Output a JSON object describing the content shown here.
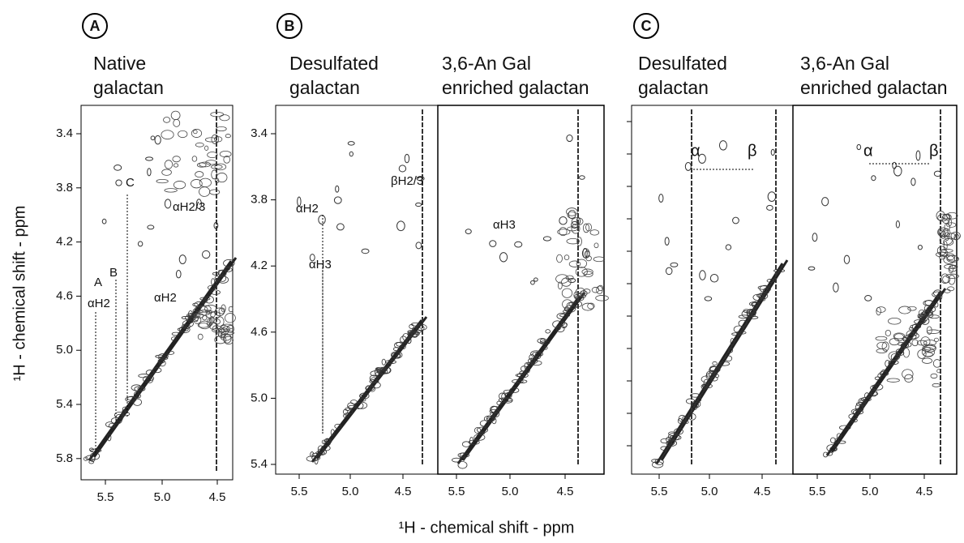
{
  "panels": [
    {
      "label": "A",
      "yticks": [
        "3.4",
        "3.8",
        "4.2",
        "4.6",
        "5.0",
        "5.4",
        "5.8"
      ],
      "spectra": [
        {
          "title": [
            "Native",
            "galactan"
          ],
          "xticks": [
            "5.5",
            "5.0",
            "4.5"
          ]
        }
      ],
      "annotations": [
        "C",
        "αH2/3",
        "B",
        "A",
        "αH2",
        "αH2"
      ]
    },
    {
      "label": "B",
      "yticks": [
        "3.4",
        "3.8",
        "4.2",
        "4.6",
        "5.0",
        "5.4"
      ],
      "spectra": [
        {
          "title": [
            "Desulfated",
            "galactan"
          ],
          "xticks": [
            "5.5",
            "5.0",
            "4.5"
          ]
        },
        {
          "title": [
            "3,6-An Gal",
            "enriched galactan"
          ],
          "xticks": [
            "5.5",
            "5.0",
            "4.5"
          ]
        }
      ],
      "annotations": [
        "αH2",
        "βH2/3",
        "αH3",
        "αH3"
      ]
    },
    {
      "label": "C",
      "spectra": [
        {
          "title": [
            "Desulfated",
            "galactan"
          ],
          "xticks": [
            "5.5",
            "5.0",
            "4.5"
          ]
        },
        {
          "title": [
            "3,6-An Gal",
            "enriched galactan"
          ],
          "xticks": [
            "5.5",
            "5.0",
            "4.5"
          ]
        }
      ],
      "annotations": [
        "α",
        "β",
        "α",
        "β"
      ]
    }
  ],
  "x_axis_label": "¹H - chemical shift - ppm",
  "y_axis_label": "¹H - chemical shift - ppm"
}
